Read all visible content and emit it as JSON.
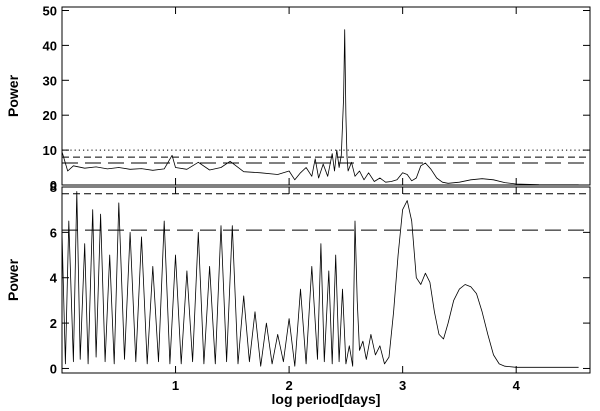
{
  "chart_data": [
    {
      "type": "line",
      "panel": "top",
      "xlabel": "",
      "ylabel": "Power",
      "xlim": [
        0.0,
        4.65
      ],
      "ylim": [
        0,
        51
      ],
      "x_ticks": [
        1,
        2,
        3,
        4
      ],
      "y_ticks": [
        0,
        10,
        20,
        30,
        40,
        50
      ],
      "y_tick_labels": [
        "0",
        "10",
        "20",
        "30",
        "40",
        "50"
      ],
      "threshold_lines": [
        {
          "style": "dotted",
          "y": 10.0
        },
        {
          "style": "short-dash",
          "y": 8.0
        },
        {
          "style": "long-dash",
          "y": 6.3
        }
      ],
      "series": [
        {
          "x": [
            0.0,
            0.05,
            0.1,
            0.2,
            0.3,
            0.4,
            0.5,
            0.6,
            0.7,
            0.8,
            0.9,
            0.97,
            1.0,
            1.1,
            1.2,
            1.3,
            1.4,
            1.48,
            1.6,
            1.75,
            1.9,
            2.0,
            2.05,
            2.1,
            2.15,
            2.2,
            2.23,
            2.26,
            2.3,
            2.34,
            2.38,
            2.4,
            2.42,
            2.44,
            2.46,
            2.48,
            2.49,
            2.5,
            2.51,
            2.52,
            2.55,
            2.58,
            2.62,
            2.66,
            2.7,
            2.75,
            2.8,
            2.85,
            2.9,
            2.95,
            3.0,
            3.04,
            3.08,
            3.12,
            3.16,
            3.2,
            3.25,
            3.3,
            3.35,
            3.4,
            3.5,
            3.6,
            3.7,
            3.8,
            3.9,
            4.0,
            4.2,
            4.4,
            4.55
          ],
          "y": [
            9.5,
            4.0,
            5.5,
            4.8,
            5.2,
            4.6,
            5.0,
            4.5,
            4.7,
            4.2,
            4.6,
            8.5,
            5.0,
            4.5,
            6.5,
            4.3,
            5.0,
            6.8,
            3.8,
            3.5,
            3.0,
            4.0,
            1.5,
            3.5,
            5.0,
            2.5,
            7.5,
            2.0,
            6.0,
            2.5,
            9.0,
            4.0,
            10.0,
            5.0,
            8.5,
            25.0,
            44.5,
            20.0,
            8.0,
            4.0,
            6.5,
            2.5,
            4.0,
            1.5,
            3.5,
            1.0,
            2.0,
            0.8,
            1.0,
            1.5,
            3.5,
            3.0,
            1.2,
            2.0,
            5.5,
            6.3,
            4.5,
            2.0,
            0.8,
            0.5,
            0.8,
            1.5,
            1.8,
            1.5,
            0.7,
            0.3,
            0.1,
            0.05,
            0.05
          ]
        }
      ]
    },
    {
      "type": "line",
      "panel": "bottom",
      "xlabel": "log period[days]",
      "ylabel": "Power",
      "xlim": [
        0.0,
        4.65
      ],
      "ylim": [
        -0.2,
        8.0
      ],
      "x_ticks": [
        1,
        2,
        3,
        4
      ],
      "x_tick_labels": [
        "1",
        "2",
        "3",
        "4"
      ],
      "y_ticks": [
        0,
        2,
        4,
        6,
        8
      ],
      "y_tick_labels": [
        "0",
        "2",
        "4",
        "6",
        "8"
      ],
      "threshold_lines": [
        {
          "style": "short-dash",
          "y": 7.7
        },
        {
          "style": "long-dash",
          "y": 6.1
        }
      ],
      "series": [
        {
          "x": [
            0.0,
            0.03,
            0.06,
            0.1,
            0.13,
            0.16,
            0.2,
            0.23,
            0.27,
            0.3,
            0.34,
            0.38,
            0.42,
            0.46,
            0.5,
            0.55,
            0.6,
            0.65,
            0.7,
            0.75,
            0.8,
            0.85,
            0.9,
            0.95,
            1.0,
            1.05,
            1.1,
            1.15,
            1.2,
            1.25,
            1.3,
            1.35,
            1.4,
            1.45,
            1.5,
            1.55,
            1.6,
            1.65,
            1.7,
            1.75,
            1.8,
            1.85,
            1.9,
            1.95,
            2.0,
            2.05,
            2.1,
            2.15,
            2.2,
            2.25,
            2.28,
            2.31,
            2.35,
            2.38,
            2.41,
            2.44,
            2.47,
            2.5,
            2.53,
            2.56,
            2.58,
            2.6,
            2.62,
            2.65,
            2.68,
            2.72,
            2.76,
            2.8,
            2.84,
            2.88,
            2.92,
            2.96,
            3.0,
            3.04,
            3.08,
            3.12,
            3.16,
            3.2,
            3.24,
            3.28,
            3.32,
            3.36,
            3.4,
            3.45,
            3.5,
            3.55,
            3.6,
            3.65,
            3.7,
            3.75,
            3.8,
            3.85,
            3.9,
            4.0,
            4.1,
            4.2,
            4.3,
            4.4,
            4.55
          ],
          "y": [
            6.0,
            0.2,
            6.5,
            0.3,
            7.8,
            0.4,
            5.5,
            0.2,
            7.0,
            0.5,
            6.8,
            0.3,
            5.0,
            0.2,
            7.3,
            0.4,
            6.0,
            0.3,
            5.8,
            0.2,
            4.5,
            0.3,
            6.5,
            0.2,
            5.0,
            0.2,
            4.3,
            0.3,
            6.0,
            0.2,
            4.5,
            0.2,
            6.3,
            0.3,
            6.3,
            0.2,
            3.2,
            0.3,
            2.5,
            0.1,
            2.0,
            0.2,
            1.5,
            0.3,
            2.2,
            0.1,
            3.5,
            0.2,
            4.5,
            0.4,
            5.5,
            0.3,
            4.3,
            0.2,
            5.0,
            0.3,
            3.5,
            0.2,
            1.0,
            0.1,
            6.5,
            3.0,
            0.8,
            1.2,
            0.4,
            1.5,
            0.6,
            1.0,
            0.2,
            0.5,
            2.5,
            5.0,
            7.0,
            7.4,
            6.5,
            4.0,
            3.7,
            4.2,
            3.8,
            2.5,
            1.5,
            1.3,
            2.0,
            3.0,
            3.5,
            3.7,
            3.6,
            3.3,
            2.5,
            1.5,
            0.6,
            0.2,
            0.1,
            0.05,
            0.05,
            0.05,
            0.05,
            0.05,
            0.05
          ]
        }
      ]
    }
  ]
}
